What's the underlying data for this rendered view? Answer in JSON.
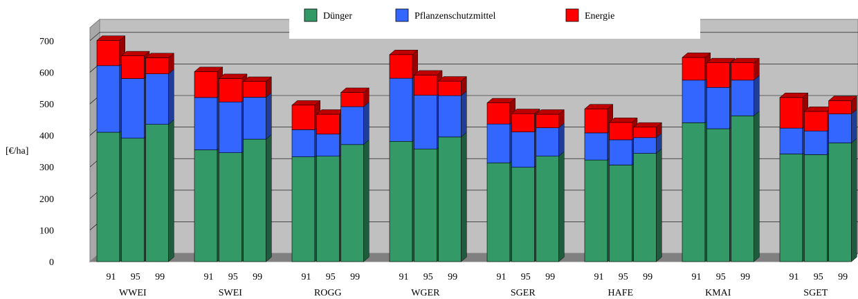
{
  "chart_data": {
    "type": "bar",
    "stacked": true,
    "three_d": true,
    "ylabel": "[€/ha]",
    "ylim": [
      0,
      700
    ],
    "yticks": [
      "0",
      "100",
      "200",
      "300",
      "400",
      "500",
      "600",
      "700"
    ],
    "grid": true,
    "legend_position": "top",
    "groups": [
      "WWEI",
      "SWEI",
      "ROGG",
      "WGER",
      "SGER",
      "HAFE",
      "KMAI",
      "SGET"
    ],
    "years": [
      "91",
      "95",
      "99"
    ],
    "series": [
      {
        "name": "Dünger",
        "color": "#339966",
        "values": [
          [
            410,
            391,
            435
          ],
          [
            354,
            345,
            388
          ],
          [
            332,
            334,
            371
          ],
          [
            381,
            357,
            395
          ],
          [
            313,
            299,
            334
          ],
          [
            322,
            306,
            343
          ],
          [
            440,
            421,
            462
          ],
          [
            341,
            339,
            376
          ]
        ]
      },
      {
        "name": "Pflanzenschutzmittel",
        "color": "#3366ff",
        "values": [
          [
            211,
            189,
            160
          ],
          [
            166,
            161,
            133
          ],
          [
            86,
            70,
            120
          ],
          [
            200,
            170,
            131
          ],
          [
            123,
            112,
            90
          ],
          [
            86,
            80,
            50
          ],
          [
            135,
            131,
            113
          ],
          [
            82,
            75,
            92
          ]
        ]
      },
      {
        "name": "Energie",
        "color": "#ff0000",
        "values": [
          [
            80,
            72,
            51
          ],
          [
            82,
            74,
            50
          ],
          [
            78,
            63,
            45
          ],
          [
            75,
            64,
            46
          ],
          [
            67,
            58,
            43
          ],
          [
            76,
            55,
            33
          ],
          [
            72,
            78,
            55
          ],
          [
            97,
            62,
            42
          ]
        ]
      }
    ]
  }
}
